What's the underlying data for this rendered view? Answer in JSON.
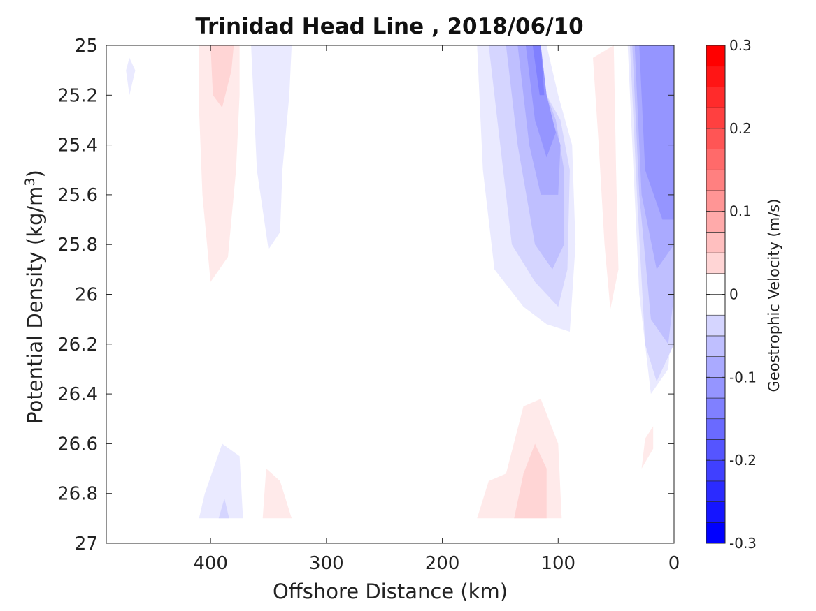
{
  "chart_data": {
    "type": "contour",
    "title": "Trinidad Head Line , 2018/06/10",
    "xlabel": "Offshore Distance (km)",
    "ylabel": "Potential Density (kg/m",
    "ylabel_sup": "3",
    "ylabel_close": ")",
    "xlim": [
      490,
      0
    ],
    "x_reversed": true,
    "ylim": [
      25,
      27
    ],
    "y_reversed": true,
    "xticks": [
      400,
      300,
      200,
      100,
      0
    ],
    "xtick_labels": [
      "400",
      "300",
      "200",
      "100",
      "0"
    ],
    "yticks": [
      25,
      25.2,
      25.4,
      25.6,
      25.8,
      26,
      26.2,
      26.4,
      26.6,
      26.8,
      27
    ],
    "ytick_labels": [
      "25",
      "25.2",
      "25.4",
      "25.6",
      "25.8",
      "26",
      "26.2",
      "26.4",
      "26.6",
      "26.8",
      "27"
    ],
    "colorbar": {
      "label": "Geostrophic Velocity (m/s)",
      "range": [
        -0.3,
        0.3
      ],
      "levels": [
        -0.3,
        -0.275,
        -0.25,
        -0.225,
        -0.2,
        -0.175,
        -0.15,
        -0.125,
        -0.1,
        -0.075,
        -0.05,
        -0.025,
        0,
        0.025,
        0.05,
        0.075,
        0.1,
        0.125,
        0.15,
        0.175,
        0.2,
        0.225,
        0.25,
        0.275,
        0.3
      ],
      "ticks": [
        0.3,
        0.2,
        0.1,
        0,
        -0.1,
        -0.2,
        -0.3
      ],
      "tick_labels": [
        "0.3",
        "0.2",
        "0.1",
        "0",
        "-0.1",
        "-0.2",
        "-0.3"
      ],
      "colors": {
        "negative": "#0000ff",
        "zero": "#ffffff",
        "positive": "#ff0000"
      }
    },
    "regions": [
      {
        "name": "nearshore-jet-outer",
        "level": -0.025,
        "points": [
          [
            170,
            25
          ],
          [
            165,
            25.5
          ],
          [
            155,
            25.9
          ],
          [
            130,
            26.05
          ],
          [
            110,
            26.12
          ],
          [
            90,
            26.15
          ],
          [
            85,
            25.8
          ],
          [
            88,
            25.4
          ],
          [
            100,
            25.2
          ],
          [
            110,
            25
          ],
          [
            40,
            25
          ],
          [
            35,
            25.5
          ],
          [
            30,
            26
          ],
          [
            20,
            26.4
          ],
          [
            5,
            26.3
          ],
          [
            0,
            26
          ],
          [
            0,
            25
          ]
        ]
      },
      {
        "name": "nearshore-jet-2",
        "level": -0.05,
        "points": [
          [
            160,
            25
          ],
          [
            150,
            25.4
          ],
          [
            140,
            25.8
          ],
          [
            120,
            25.95
          ],
          [
            100,
            26.05
          ],
          [
            92,
            25.9
          ],
          [
            90,
            25.5
          ],
          [
            98,
            25.3
          ],
          [
            110,
            25.2
          ],
          [
            115,
            25
          ]
        ]
      },
      {
        "name": "nearshore-jet-3",
        "level": -0.075,
        "points": [
          [
            145,
            25
          ],
          [
            135,
            25.4
          ],
          [
            120,
            25.8
          ],
          [
            105,
            25.9
          ],
          [
            95,
            25.8
          ],
          [
            95,
            25.5
          ],
          [
            102,
            25.3
          ],
          [
            110,
            25.2
          ],
          [
            115,
            25
          ]
        ]
      },
      {
        "name": "nearshore-jet-4",
        "level": -0.1,
        "points": [
          [
            135,
            25
          ],
          [
            125,
            25.4
          ],
          [
            115,
            25.6
          ],
          [
            100,
            25.6
          ],
          [
            98,
            25.4
          ],
          [
            105,
            25.3
          ],
          [
            112,
            25.2
          ],
          [
            115,
            25
          ]
        ]
      },
      {
        "name": "nearshore-jet-5",
        "level": -0.125,
        "points": [
          [
            128,
            25
          ],
          [
            120,
            25.3
          ],
          [
            110,
            25.45
          ],
          [
            102,
            25.35
          ],
          [
            110,
            25.2
          ],
          [
            115,
            25
          ]
        ]
      },
      {
        "name": "nearshore-jet-core",
        "level": -0.15,
        "points": [
          [
            122,
            25
          ],
          [
            116,
            25.2
          ],
          [
            112,
            25.2
          ],
          [
            115,
            25
          ]
        ]
      },
      {
        "name": "shelf-edge-outer",
        "level": -0.05,
        "points": [
          [
            38,
            25
          ],
          [
            32,
            25.6
          ],
          [
            25,
            26.2
          ],
          [
            15,
            26.35
          ],
          [
            0,
            26.2
          ],
          [
            0,
            25
          ]
        ]
      },
      {
        "name": "shelf-edge-2",
        "level": -0.075,
        "points": [
          [
            36,
            25
          ],
          [
            30,
            25.6
          ],
          [
            20,
            26.1
          ],
          [
            5,
            26.2
          ],
          [
            0,
            26
          ],
          [
            0,
            25
          ]
        ]
      },
      {
        "name": "shelf-edge-3",
        "level": -0.1,
        "points": [
          [
            34,
            25
          ],
          [
            28,
            25.6
          ],
          [
            15,
            25.9
          ],
          [
            0,
            25.8
          ],
          [
            0,
            25
          ]
        ]
      },
      {
        "name": "shelf-edge-core",
        "level": -0.125,
        "points": [
          [
            30,
            25
          ],
          [
            25,
            25.5
          ],
          [
            10,
            25.7
          ],
          [
            0,
            25.7
          ],
          [
            0,
            25
          ]
        ]
      },
      {
        "name": "offshore-pos-a",
        "level": 0.025,
        "points": [
          [
            410,
            25
          ],
          [
            410,
            25.25
          ],
          [
            407,
            25.6
          ],
          [
            400,
            25.95
          ],
          [
            385,
            25.85
          ],
          [
            378,
            25.5
          ],
          [
            375,
            25.2
          ],
          [
            375,
            25
          ]
        ]
      },
      {
        "name": "offshore-pos-a-core",
        "level": 0.05,
        "points": [
          [
            400,
            25
          ],
          [
            398,
            25.2
          ],
          [
            390,
            25.25
          ],
          [
            382,
            25.1
          ],
          [
            380,
            25
          ]
        ]
      },
      {
        "name": "offshore-neg-b",
        "level": -0.025,
        "points": [
          [
            365,
            25
          ],
          [
            360,
            25.5
          ],
          [
            350,
            25.82
          ],
          [
            340,
            25.75
          ],
          [
            338,
            25.5
          ],
          [
            332,
            25.2
          ],
          [
            330,
            25
          ]
        ]
      },
      {
        "name": "offshore-neg-c",
        "level": -0.025,
        "points": [
          [
            473,
            25.1
          ],
          [
            470,
            25.2
          ],
          [
            465,
            25.1
          ],
          [
            470,
            25.05
          ]
        ]
      },
      {
        "name": "midshore-pos-d",
        "level": 0.025,
        "points": [
          [
            70,
            25.05
          ],
          [
            65,
            25.4
          ],
          [
            60,
            25.8
          ],
          [
            55,
            26.06
          ],
          [
            48,
            25.9
          ],
          [
            50,
            25.5
          ],
          [
            52,
            25
          ]
        ]
      },
      {
        "name": "deep-neg-e",
        "level": -0.025,
        "points": [
          [
            410,
            26.9
          ],
          [
            405,
            26.8
          ],
          [
            390,
            26.6
          ],
          [
            375,
            26.65
          ],
          [
            372,
            26.9
          ]
        ]
      },
      {
        "name": "deep-neg-e-core",
        "level": -0.05,
        "points": [
          [
            393,
            26.9
          ],
          [
            388,
            26.82
          ],
          [
            384,
            26.9
          ]
        ]
      },
      {
        "name": "deep-pos-f",
        "level": 0.025,
        "points": [
          [
            355,
            26.9
          ],
          [
            352,
            26.7
          ],
          [
            340,
            26.75
          ],
          [
            330,
            26.9
          ]
        ]
      },
      {
        "name": "deep-pos-g",
        "level": 0.025,
        "points": [
          [
            170,
            26.9
          ],
          [
            160,
            26.75
          ],
          [
            145,
            26.72
          ],
          [
            130,
            26.45
          ],
          [
            115,
            26.42
          ],
          [
            100,
            26.6
          ],
          [
            97,
            26.9
          ]
        ]
      },
      {
        "name": "deep-pos-g-core",
        "level": 0.05,
        "points": [
          [
            138,
            26.9
          ],
          [
            130,
            26.72
          ],
          [
            120,
            26.6
          ],
          [
            110,
            26.7
          ],
          [
            110,
            26.9
          ]
        ]
      },
      {
        "name": "deep-pos-h",
        "level": 0.025,
        "points": [
          [
            28,
            26.7
          ],
          [
            25,
            26.58
          ],
          [
            18,
            26.53
          ],
          [
            18,
            26.62
          ]
        ]
      }
    ]
  }
}
